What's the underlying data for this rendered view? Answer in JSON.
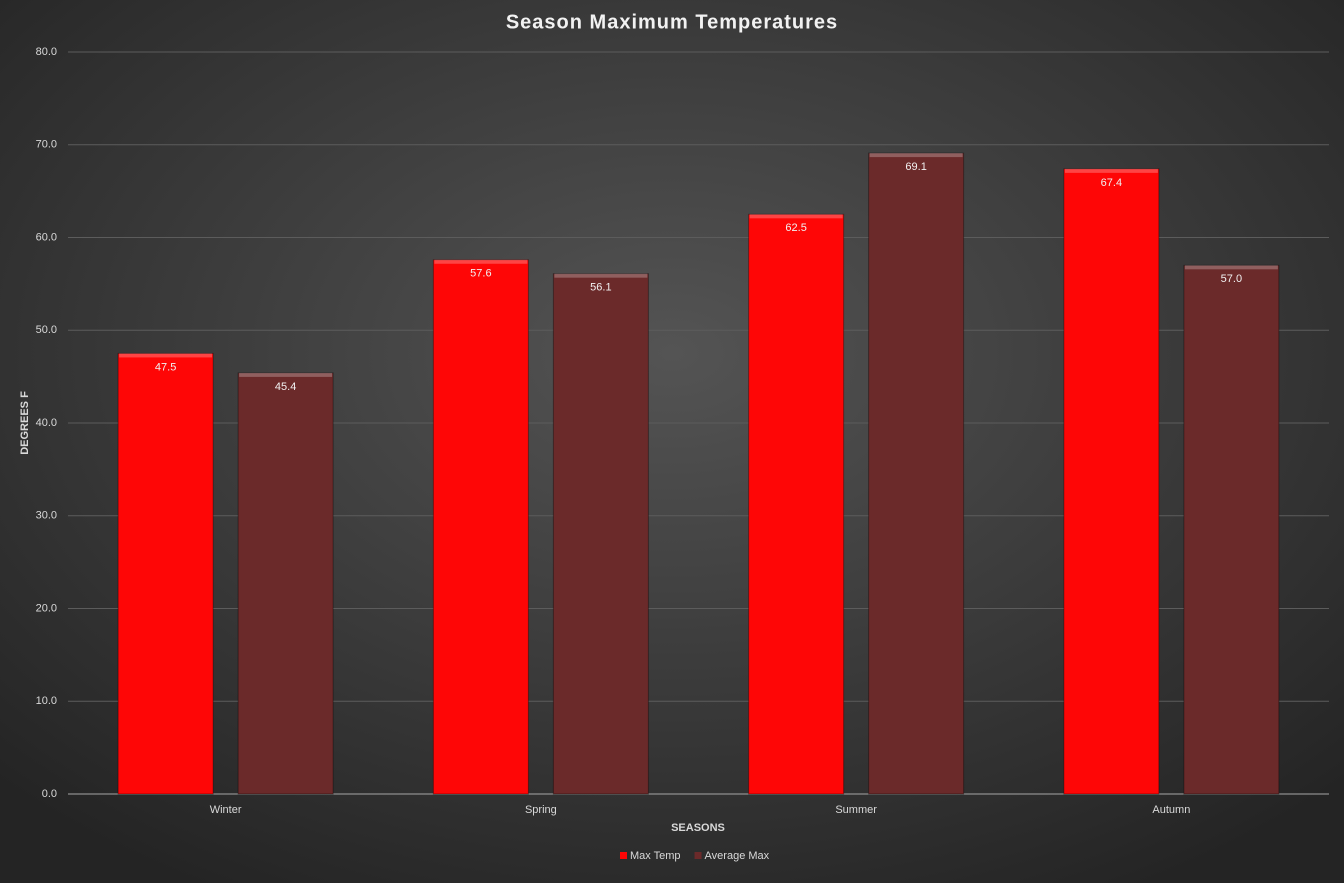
{
  "chart_data": {
    "type": "bar",
    "title": "Season Maximum Temperatures",
    "x_label": "SEASONS",
    "y_label": "DEGREES F",
    "categories": [
      "Winter",
      "Spring",
      "Summer",
      "Autumn"
    ],
    "series": [
      {
        "name": "Max Temp",
        "color": "#fe0606",
        "values": [
          47.5,
          57.6,
          62.5,
          67.4
        ],
        "value_labels": [
          "47.5",
          "57.6",
          "62.5",
          "67.4"
        ]
      },
      {
        "name": "Average Max",
        "color": "#6b2a2a",
        "values": [
          45.4,
          56.1,
          69.1,
          57.0
        ],
        "value_labels": [
          "45.4",
          "56.1",
          "69.1",
          "57.0"
        ]
      }
    ],
    "ylim": [
      0,
      80
    ],
    "yticks": [
      {
        "value": 0,
        "label": "0.0"
      },
      {
        "value": 10,
        "label": "10.0"
      },
      {
        "value": 20,
        "label": "20.0"
      },
      {
        "value": 30,
        "label": "30.0"
      },
      {
        "value": 40,
        "label": "40.0"
      },
      {
        "value": 50,
        "label": "50.0"
      },
      {
        "value": 60,
        "label": "60.0"
      },
      {
        "value": 70,
        "label": "70.0"
      },
      {
        "value": 80,
        "label": "80.0"
      }
    ],
    "grid": true,
    "legend": "bottom"
  }
}
